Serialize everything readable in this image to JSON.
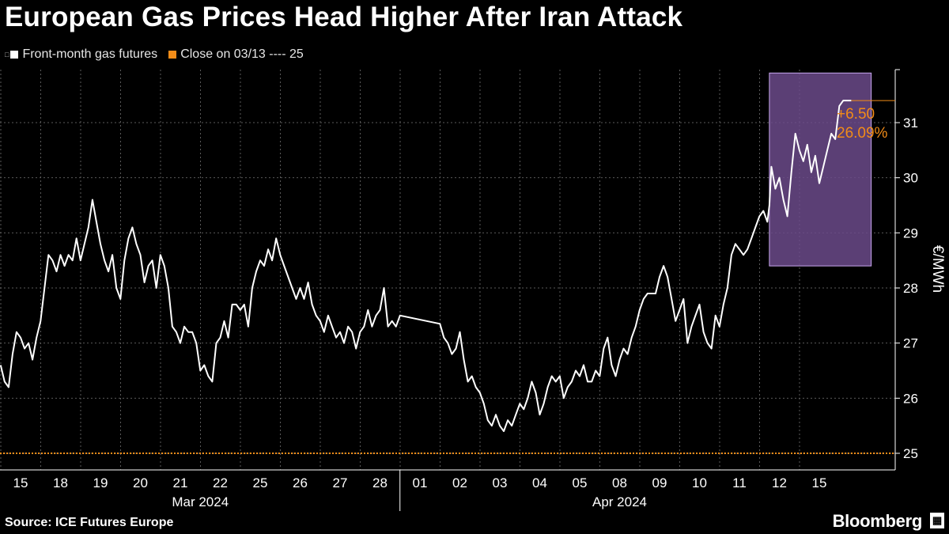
{
  "header": {
    "title": "European Gas Prices Head Higher After Iran Attack"
  },
  "legend": {
    "series_label": "Front-month gas futures",
    "reference_label": "Close on 03/13 ---- 25",
    "series_color": "#ffffff",
    "reference_color": "#f28c18"
  },
  "annotation": {
    "change": "+6.50",
    "percent": "26.09%",
    "color": "#f28c18",
    "highlight_color": "#6b4a8a"
  },
  "footer": {
    "source": "Source: ICE Futures Europe",
    "brand": "Bloomberg"
  },
  "chart_data": {
    "type": "line",
    "title": "European Gas Prices Head Higher After Iran Attack",
    "ylabel": "€/MWh",
    "xlabel": "",
    "ylim": [
      24.8,
      32.0
    ],
    "y_ticks": [
      25,
      26,
      27,
      28,
      29,
      30,
      31
    ],
    "categories": [
      "15",
      "18",
      "19",
      "20",
      "21",
      "22",
      "25",
      "26",
      "27",
      "28",
      "01",
      "02",
      "03",
      "04",
      "05",
      "08",
      "09",
      "10",
      "11",
      "12",
      "15"
    ],
    "months": [
      {
        "label": "Mar 2024",
        "from": 0,
        "to": 9
      },
      {
        "label": "Apr 2024",
        "from": 10,
        "to": 20
      }
    ],
    "reference_line": {
      "label": "Close on 03/13",
      "value": 25
    },
    "highlight": {
      "from": 18.75,
      "to": 21.3,
      "low": 28.4,
      "high": 31.9
    },
    "series": [
      {
        "name": "Front-month gas futures",
        "x": [
          -0.5,
          -0.4,
          -0.3,
          -0.2,
          -0.1,
          0.0,
          0.1,
          0.2,
          0.3,
          0.4,
          0.5,
          0.6,
          0.7,
          0.8,
          0.9,
          1.0,
          1.1,
          1.2,
          1.3,
          1.4,
          1.5,
          1.6,
          1.7,
          1.8,
          1.9,
          2.0,
          2.1,
          2.2,
          2.3,
          2.4,
          2.5,
          2.6,
          2.7,
          2.8,
          2.9,
          3.0,
          3.1,
          3.2,
          3.3,
          3.4,
          3.5,
          3.6,
          3.7,
          3.8,
          3.9,
          4.0,
          4.1,
          4.2,
          4.3,
          4.4,
          4.5,
          4.6,
          4.7,
          4.8,
          4.9,
          5.0,
          5.1,
          5.2,
          5.3,
          5.4,
          5.5,
          5.6,
          5.7,
          5.8,
          5.9,
          6.0,
          6.1,
          6.2,
          6.3,
          6.4,
          6.5,
          6.6,
          6.7,
          6.8,
          6.9,
          7.0,
          7.1,
          7.2,
          7.3,
          7.4,
          7.5,
          7.6,
          7.7,
          7.8,
          7.9,
          8.0,
          8.1,
          8.2,
          8.3,
          8.4,
          8.5,
          8.6,
          8.7,
          8.8,
          8.9,
          9.0,
          9.1,
          9.2,
          9.3,
          9.4,
          9.5,
          10.5,
          10.6,
          10.7,
          10.8,
          10.9,
          11.0,
          11.1,
          11.2,
          11.3,
          11.4,
          11.5,
          11.6,
          11.7,
          11.8,
          11.9,
          12.0,
          12.1,
          12.2,
          12.3,
          12.4,
          12.5,
          12.6,
          12.7,
          12.8,
          12.9,
          13.0,
          13.1,
          13.2,
          13.3,
          13.4,
          13.5,
          13.6,
          13.7,
          13.8,
          13.9,
          14.0,
          14.1,
          14.2,
          14.3,
          14.4,
          14.5,
          14.6,
          14.7,
          14.8,
          14.9,
          15.0,
          15.1,
          15.2,
          15.3,
          15.4,
          15.5,
          15.6,
          15.7,
          15.8,
          15.9,
          16.0,
          16.1,
          16.2,
          16.3,
          16.4,
          16.5,
          16.6,
          16.7,
          16.8,
          16.9,
          17.0,
          17.1,
          17.2,
          17.3,
          17.4,
          17.5,
          17.6,
          17.7,
          17.8,
          17.9,
          18.0,
          18.1,
          18.2,
          18.3,
          18.4,
          18.5,
          18.6,
          18.7,
          18.75,
          18.8,
          18.9,
          19.0,
          19.1,
          19.2,
          19.3,
          19.4,
          19.5,
          19.6,
          19.7,
          19.8,
          19.9,
          20.0,
          20.1,
          20.2,
          20.3,
          20.4,
          20.5,
          20.6,
          20.7,
          20.8
        ],
        "values": [
          26.6,
          26.3,
          26.2,
          26.8,
          27.2,
          27.1,
          26.9,
          27.0,
          26.7,
          27.1,
          27.4,
          28.0,
          28.6,
          28.5,
          28.3,
          28.6,
          28.4,
          28.6,
          28.5,
          28.9,
          28.5,
          28.8,
          29.1,
          29.6,
          29.2,
          28.8,
          28.5,
          28.3,
          28.6,
          28.0,
          27.8,
          28.5,
          28.9,
          29.1,
          28.8,
          28.6,
          28.1,
          28.4,
          28.5,
          28.0,
          28.6,
          28.4,
          28.0,
          27.3,
          27.2,
          27.0,
          27.3,
          27.2,
          27.2,
          27.0,
          26.5,
          26.6,
          26.4,
          26.3,
          27.0,
          27.1,
          27.4,
          27.1,
          27.7,
          27.7,
          27.6,
          27.7,
          27.3,
          28.0,
          28.3,
          28.5,
          28.4,
          28.7,
          28.5,
          28.9,
          28.6,
          28.4,
          28.2,
          28.0,
          27.8,
          28.0,
          27.8,
          28.1,
          27.7,
          27.5,
          27.4,
          27.2,
          27.5,
          27.3,
          27.1,
          27.2,
          27.0,
          27.3,
          27.2,
          26.9,
          27.2,
          27.3,
          27.6,
          27.3,
          27.5,
          27.6,
          28.0,
          27.3,
          27.4,
          27.3,
          27.5,
          27.35,
          27.1,
          27.0,
          26.8,
          26.9,
          27.2,
          26.7,
          26.3,
          26.4,
          26.2,
          26.1,
          25.9,
          25.6,
          25.5,
          25.7,
          25.5,
          25.4,
          25.6,
          25.5,
          25.7,
          25.9,
          25.8,
          26.0,
          26.3,
          26.1,
          25.7,
          25.9,
          26.2,
          26.4,
          26.3,
          26.4,
          26.0,
          26.2,
          26.3,
          26.5,
          26.4,
          26.6,
          26.3,
          26.3,
          26.5,
          26.4,
          26.9,
          27.1,
          26.6,
          26.4,
          26.7,
          26.9,
          26.8,
          27.1,
          27.3,
          27.6,
          27.8,
          27.9,
          27.9,
          27.9,
          28.2,
          28.4,
          28.2,
          27.8,
          27.4,
          27.6,
          27.8,
          27.0,
          27.3,
          27.5,
          27.7,
          27.2,
          27.0,
          26.9,
          27.5,
          27.3,
          27.7,
          28.0,
          28.6,
          28.8,
          28.7,
          28.6,
          28.7,
          28.9,
          29.1,
          29.3,
          29.4,
          29.2,
          29.5,
          30.2,
          29.8,
          30.0,
          29.6,
          29.3,
          30.1,
          30.8,
          30.5,
          30.3,
          30.6,
          30.1,
          30.4,
          29.9,
          30.2,
          30.5,
          30.8,
          30.7,
          31.3,
          31.4,
          31.4,
          31.4
        ]
      }
    ]
  }
}
